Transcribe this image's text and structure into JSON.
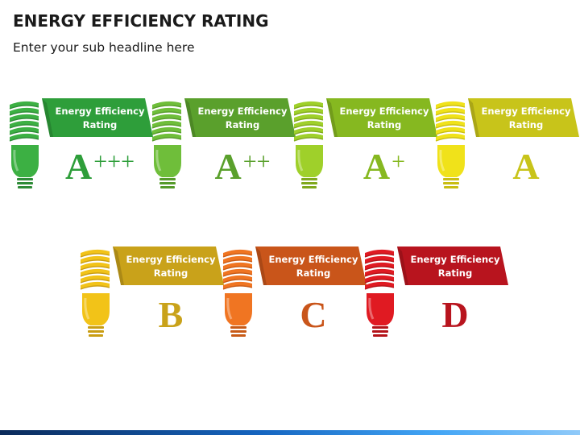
{
  "header": {
    "title": "ENERGY EFFICIENCY RATING",
    "subtitle": "Enter your sub headline here"
  },
  "ratings": [
    {
      "label": "Energy Efficiency\nRating",
      "grade": "A",
      "plus": "+++",
      "color": "#2e9e3a",
      "bulb": "#3cb043",
      "bulb_dark": "#2e8b37"
    },
    {
      "label": "Energy Efficiency\nRating",
      "grade": "A",
      "plus": "++",
      "color": "#5aa02c",
      "bulb": "#6fbe3a",
      "bulb_dark": "#559a2a"
    },
    {
      "label": "Energy Efficiency\nRating",
      "grade": "A",
      "plus": "+",
      "color": "#86b820",
      "bulb": "#9fd02a",
      "bulb_dark": "#7fa81d"
    },
    {
      "label": "Energy Efficiency\nRating",
      "grade": "A",
      "plus": "",
      "color": "#c8c41a",
      "bulb": "#f0e21a",
      "bulb_dark": "#c9bd12"
    },
    {
      "label": "Energy Efficiency\nRating",
      "grade": "B",
      "plus": "",
      "color": "#c9a21a",
      "bulb": "#f2c318",
      "bulb_dark": "#c99d12"
    },
    {
      "label": "Energy Efficiency\nRating",
      "grade": "C",
      "plus": "",
      "color": "#c9551a",
      "bulb": "#f07522",
      "bulb_dark": "#c85a16"
    },
    {
      "label": "Energy Efficiency\nRating",
      "grade": "D",
      "plus": "",
      "color": "#b8141e",
      "bulb": "#e01a22",
      "bulb_dark": "#b31218"
    }
  ]
}
